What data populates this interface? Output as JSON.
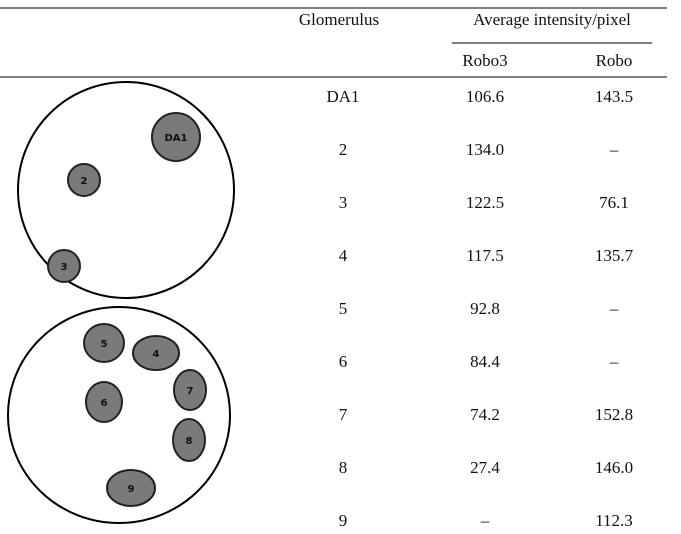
{
  "table": {
    "header": {
      "glomerulus": "Glomerulus",
      "group": "Average intensity/pixel",
      "columns": [
        "Robo3",
        "Robo"
      ]
    },
    "rows": [
      [
        "DA1",
        "106.6",
        "143.5"
      ],
      [
        "2",
        "134.0",
        "–"
      ],
      [
        "3",
        "122.5",
        "76.1"
      ],
      [
        "4",
        "117.5",
        "135.7"
      ],
      [
        "5",
        "92.8",
        "–"
      ],
      [
        "6",
        "84.4",
        "–"
      ],
      [
        "7",
        "74.2",
        "152.8"
      ],
      [
        "8",
        "27.4",
        "146.0"
      ],
      [
        "9",
        "–",
        "112.3"
      ]
    ]
  },
  "diagrams": [
    {
      "nodes": [
        "DA1",
        "2",
        "3"
      ]
    },
    {
      "nodes": [
        "5",
        "4",
        "6",
        "7",
        "8",
        "9"
      ]
    }
  ]
}
